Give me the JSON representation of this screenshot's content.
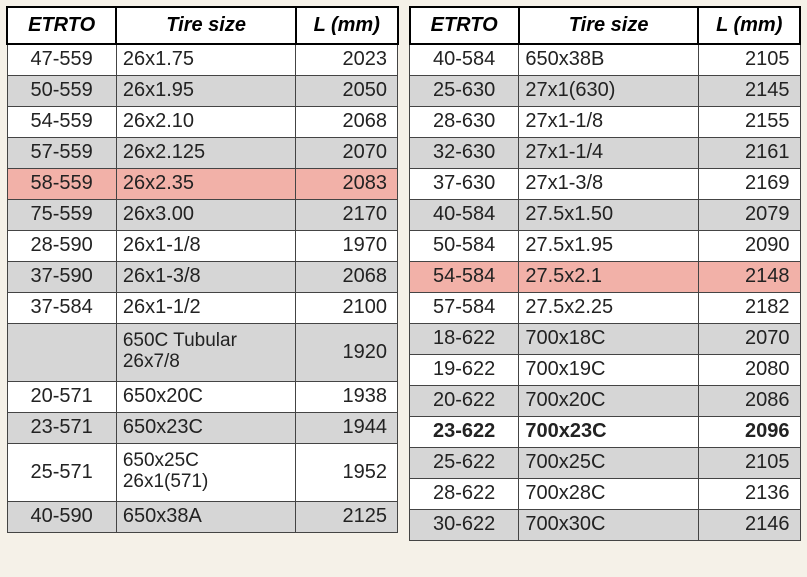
{
  "headers": {
    "etrto": "ETRTO",
    "size": "Tire size",
    "lmm": "L (mm)"
  },
  "left": [
    {
      "etrto": "47-559",
      "size": "26x1.75",
      "lmm": "2023",
      "cls": "plain"
    },
    {
      "etrto": "50-559",
      "size": "26x1.95",
      "lmm": "2050",
      "cls": "zebra"
    },
    {
      "etrto": "54-559",
      "size": "26x2.10",
      "lmm": "2068",
      "cls": "plain"
    },
    {
      "etrto": "57-559",
      "size": "26x2.125",
      "lmm": "2070",
      "cls": "zebra"
    },
    {
      "etrto": "58-559",
      "size": "26x2.35",
      "lmm": "2083",
      "cls": "hl"
    },
    {
      "etrto": "75-559",
      "size": "26x3.00",
      "lmm": "2170",
      "cls": "zebra"
    },
    {
      "etrto": "28-590",
      "size": "26x1-1/8",
      "lmm": "1970",
      "cls": "plain"
    },
    {
      "etrto": "37-590",
      "size": "26x1-3/8",
      "lmm": "2068",
      "cls": "zebra"
    },
    {
      "etrto": "37-584",
      "size": "26x1-1/2",
      "lmm": "2100",
      "cls": "plain"
    },
    {
      "etrto": "",
      "size": "650C Tubular\n26x7/8",
      "lmm": "1920",
      "cls": "zebra",
      "tall": true
    },
    {
      "etrto": "20-571",
      "size": "650x20C",
      "lmm": "1938",
      "cls": "plain"
    },
    {
      "etrto": "23-571",
      "size": "650x23C",
      "lmm": "1944",
      "cls": "zebra"
    },
    {
      "etrto": "25-571",
      "size": "650x25C\n26x1(571)",
      "lmm": "1952",
      "cls": "plain",
      "tall": true
    },
    {
      "etrto": "40-590",
      "size": "650x38A",
      "lmm": "2125",
      "cls": "zebra"
    }
  ],
  "right": [
    {
      "etrto": "40-584",
      "size": "650x38B",
      "lmm": "2105",
      "cls": "plain"
    },
    {
      "etrto": "25-630",
      "size": "27x1(630)",
      "lmm": "2145",
      "cls": "zebra"
    },
    {
      "etrto": "28-630",
      "size": "27x1-1/8",
      "lmm": "2155",
      "cls": "plain"
    },
    {
      "etrto": "32-630",
      "size": "27x1-1/4",
      "lmm": "2161",
      "cls": "zebra"
    },
    {
      "etrto": "37-630",
      "size": "27x1-3/8",
      "lmm": "2169",
      "cls": "plain"
    },
    {
      "etrto": "40-584",
      "size": "27.5x1.50",
      "lmm": "2079",
      "cls": "zebra"
    },
    {
      "etrto": "50-584",
      "size": "27.5x1.95",
      "lmm": "2090",
      "cls": "plain"
    },
    {
      "etrto": "54-584",
      "size": "27.5x2.1",
      "lmm": "2148",
      "cls": "hl"
    },
    {
      "etrto": "57-584",
      "size": "27.5x2.25",
      "lmm": "2182",
      "cls": "plain"
    },
    {
      "etrto": "18-622",
      "size": "700x18C",
      "lmm": "2070",
      "cls": "zebra"
    },
    {
      "etrto": "19-622",
      "size": "700x19C",
      "lmm": "2080",
      "cls": "plain"
    },
    {
      "etrto": "20-622",
      "size": "700x20C",
      "lmm": "2086",
      "cls": "zebra"
    },
    {
      "etrto": "23-622",
      "size": "700x23C",
      "lmm": "2096",
      "cls": "plain",
      "bold": true
    },
    {
      "etrto": "25-622",
      "size": "700x25C",
      "lmm": "2105",
      "cls": "zebra"
    },
    {
      "etrto": "28-622",
      "size": "700x28C",
      "lmm": "2136",
      "cls": "plain"
    },
    {
      "etrto": "30-622",
      "size": "700x30C",
      "lmm": "2146",
      "cls": "zebra"
    }
  ]
}
